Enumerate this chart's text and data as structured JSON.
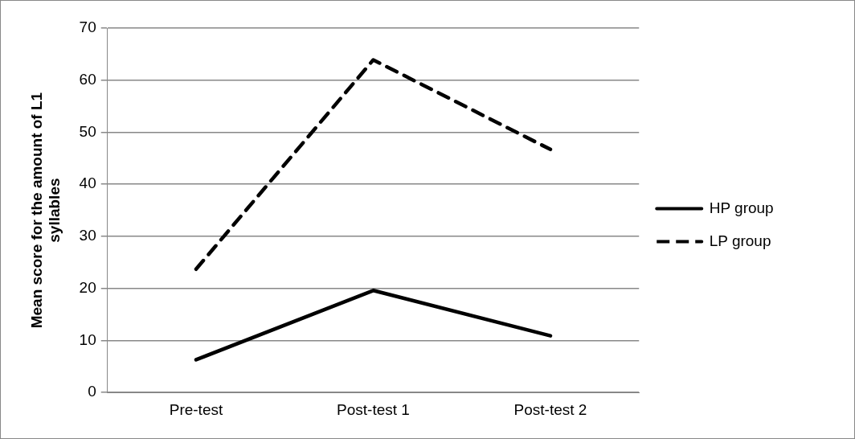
{
  "chart_data": {
    "type": "line",
    "ylabel": "Mean score for the amount of L1 syllables",
    "categories": [
      "Pre-test",
      "Post-test 1",
      "Post-test 2"
    ],
    "series": [
      {
        "name": "HP group",
        "color": "#000000",
        "values": [
          6.3,
          19.6,
          10.9
        ],
        "line_style": "solid"
      },
      {
        "name": "LP group",
        "color": "#000000",
        "values": [
          23.7,
          63.9,
          46.7
        ],
        "line_style": "dashed"
      }
    ],
    "ylim": [
      0,
      70
    ],
    "yticks": [
      0,
      10,
      20,
      30,
      40,
      50,
      60,
      70
    ],
    "grid": "y",
    "legend": "right",
    "marker": "none"
  }
}
